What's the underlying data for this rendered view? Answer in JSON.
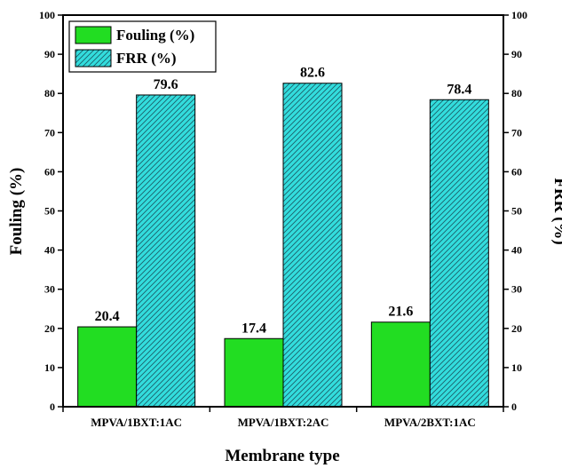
{
  "chart_data": {
    "type": "bar",
    "categories": [
      "MPVA/1BXT:1AC",
      "MPVA/1BXT:2AC",
      "MPVA/2BXT:1AC"
    ],
    "series": [
      {
        "name": "Fouling (%)",
        "values": [
          20.4,
          17.4,
          21.6
        ],
        "color": "#22dd22",
        "pattern": "solid"
      },
      {
        "name": "FRR (%)",
        "values": [
          79.6,
          82.6,
          78.4
        ],
        "color": "#33dddd",
        "pattern": "diagonal-hatch"
      }
    ],
    "data_labels": [
      "20.4",
      "79.6",
      "17.4",
      "82.6",
      "21.6",
      "78.4"
    ],
    "xlabel": "Membrane type",
    "ylabel": "Fouling (%)",
    "y2label": "FRR (%)",
    "ylim": [
      0,
      100
    ],
    "y2lim": [
      0,
      100
    ],
    "yticks": [
      0,
      10,
      20,
      30,
      40,
      50,
      60,
      70,
      80,
      90,
      100
    ],
    "grid": false,
    "legend_position": "top-left"
  }
}
